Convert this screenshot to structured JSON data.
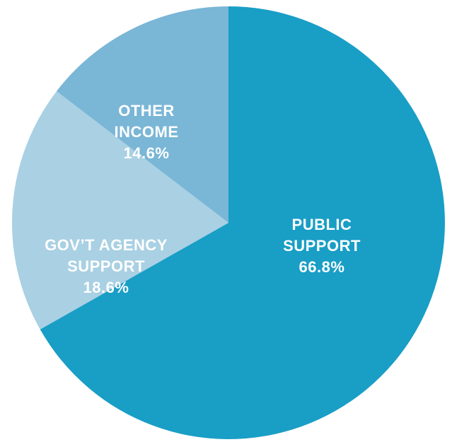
{
  "chart_data": {
    "type": "pie",
    "slices": [
      {
        "label_lines": [
          "PUBLIC",
          "SUPPORT"
        ],
        "value": 66.8,
        "value_label": "66.8%",
        "color": "#199ec6"
      },
      {
        "label_lines": [
          "GOV’T AGENCY",
          "SUPPORT"
        ],
        "value": 18.6,
        "value_label": "18.6%",
        "color": "#a9d0e3"
      },
      {
        "label_lines": [
          "OTHER",
          "INCOME"
        ],
        "value": 14.6,
        "value_label": "14.6%",
        "color": "#7ab6d6"
      }
    ],
    "start_angle_deg": 0,
    "direction": "clockwise",
    "legend": "none",
    "labels": "inside"
  }
}
